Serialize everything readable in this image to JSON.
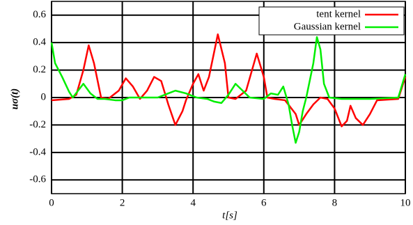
{
  "chart_data": {
    "type": "line",
    "xlabel": "t[s]",
    "ylabel": "uσ(t)",
    "xlim": [
      0,
      10
    ],
    "ylim": [
      -0.7,
      0.7
    ],
    "xticks": [
      0,
      2,
      4,
      6,
      8,
      10
    ],
    "yticks": [
      -0.6,
      -0.4,
      -0.2,
      0,
      0.2,
      0.4,
      0.6
    ],
    "grid": true,
    "legend": "upper right",
    "series": [
      {
        "name": "tent kernel",
        "color": "#ff0000",
        "x": [
          0,
          0.5,
          0.7,
          0.9,
          1.05,
          1.2,
          1.4,
          1.6,
          1.9,
          2.1,
          2.3,
          2.5,
          2.7,
          2.9,
          3.1,
          3.3,
          3.5,
          3.7,
          3.8,
          4.0,
          4.15,
          4.3,
          4.45,
          4.7,
          4.9,
          5.0,
          5.2,
          5.5,
          5.8,
          6.0,
          6.1,
          6.3,
          6.6,
          6.9,
          7.0,
          7.2,
          7.4,
          7.6,
          7.8,
          8.0,
          8.2,
          8.35,
          8.45,
          8.6,
          8.8,
          9.0,
          9.2,
          9.8,
          10
        ],
        "values": [
          -0.02,
          -0.01,
          0.02,
          0.2,
          0.38,
          0.25,
          0.0,
          -0.01,
          0.05,
          0.14,
          0.08,
          -0.01,
          0.05,
          0.15,
          0.12,
          -0.05,
          -0.2,
          -0.1,
          -0.02,
          0.1,
          0.17,
          0.05,
          0.15,
          0.46,
          0.25,
          0.0,
          -0.01,
          0.05,
          0.32,
          0.15,
          0.0,
          -0.01,
          -0.02,
          -0.12,
          -0.2,
          -0.12,
          -0.05,
          0.0,
          -0.01,
          -0.08,
          -0.21,
          -0.17,
          -0.06,
          -0.15,
          -0.2,
          -0.12,
          -0.02,
          -0.01,
          0.15
        ]
      },
      {
        "name": "Gaussian kernel",
        "color": "#00ee00",
        "x": [
          0,
          0.1,
          0.2,
          0.3,
          0.5,
          0.6,
          0.75,
          0.9,
          1.1,
          1.3,
          1.5,
          1.8,
          2.0,
          2.2,
          2.6,
          3.0,
          3.3,
          3.5,
          3.8,
          4.1,
          4.4,
          4.6,
          4.8,
          5.0,
          5.2,
          5.4,
          5.6,
          6.0,
          6.2,
          6.4,
          6.55,
          6.7,
          6.8,
          6.9,
          7.0,
          7.1,
          7.2,
          7.4,
          7.5,
          7.6,
          7.7,
          7.85,
          8.2,
          9.0,
          9.8,
          10
        ],
        "values": [
          0.4,
          0.25,
          0.2,
          0.15,
          0.04,
          0.0,
          0.05,
          0.1,
          0.03,
          -0.01,
          -0.01,
          -0.02,
          -0.02,
          0.0,
          0.0,
          0.0,
          0.03,
          0.05,
          0.03,
          0.0,
          -0.01,
          -0.03,
          -0.04,
          0.02,
          0.1,
          0.05,
          0.0,
          -0.01,
          0.03,
          0.02,
          0.08,
          -0.05,
          -0.2,
          -0.33,
          -0.25,
          -0.1,
          0.0,
          0.25,
          0.44,
          0.35,
          0.1,
          0.0,
          -0.01,
          -0.01,
          0.0,
          0.17
        ]
      }
    ]
  }
}
